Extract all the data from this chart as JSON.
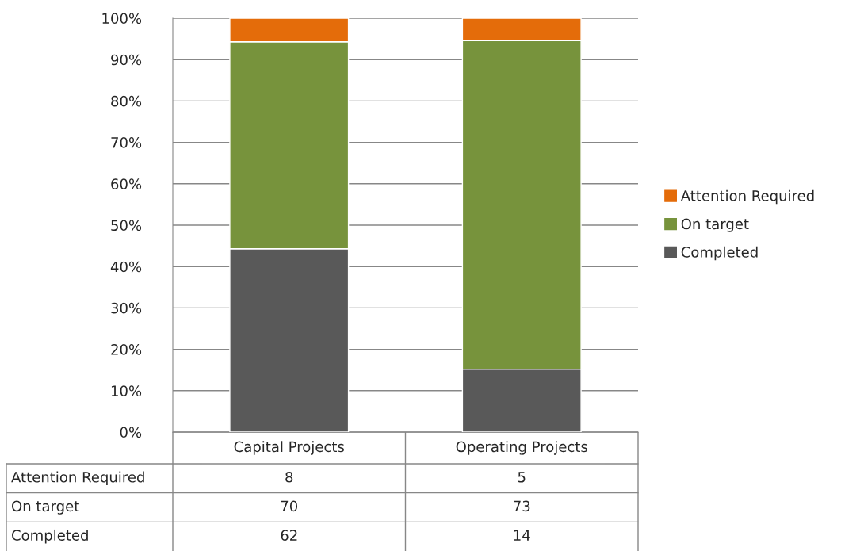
{
  "chart_data": {
    "type": "bar",
    "stacked": true,
    "categories": [
      "Capital Projects",
      "Operating Projects"
    ],
    "series": [
      {
        "name": "Completed",
        "color": "#595959",
        "values": [
          44.3,
          15.2
        ]
      },
      {
        "name": "On target",
        "color": "#77933c",
        "values": [
          50.0,
          79.4
        ]
      },
      {
        "name": "Attention Required",
        "color": "#e46c0a",
        "values": [
          5.7,
          5.4
        ]
      }
    ],
    "annotations": [
      "8",
      "5",
      "70",
      "73",
      "62",
      "14"
    ],
    "ylim": [
      0,
      100
    ],
    "yticks": [
      {
        "value": 0,
        "label": "0%"
      },
      {
        "value": 10,
        "label": "10%"
      },
      {
        "value": 20,
        "label": "20%"
      },
      {
        "value": 30,
        "label": "30%"
      },
      {
        "value": 40,
        "label": "40%"
      },
      {
        "value": 50,
        "label": "50%"
      },
      {
        "value": 60,
        "label": "60%"
      },
      {
        "value": 70,
        "label": "70%"
      },
      {
        "value": 80,
        "label": "80%"
      },
      {
        "value": 90,
        "label": "90%"
      },
      {
        "value": 100,
        "label": "100%"
      }
    ],
    "grid": "y",
    "legend": "right"
  }
}
